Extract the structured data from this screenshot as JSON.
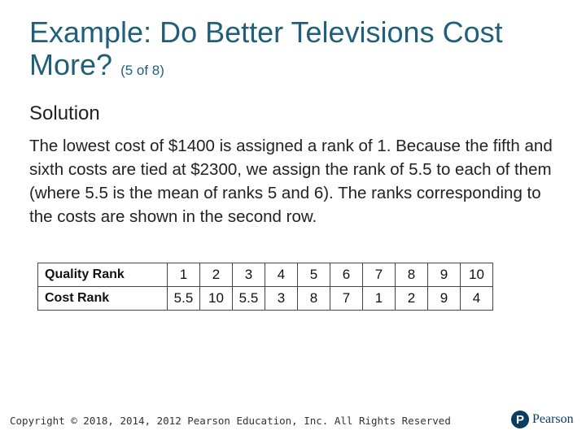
{
  "title": {
    "main": "Example: Do Better Televisions Cost More?",
    "sub": "(5 of 8)"
  },
  "subheading": "Solution",
  "paragraph": "The lowest cost of $1400 is assigned a rank of 1. Because the fifth and sixth costs are tied at $2300, we assign the rank of 5.5 to each of them (where 5.5 is the mean of ranks 5 and 6). The ranks corresponding to the costs are shown in the second row.",
  "table": {
    "rows": [
      {
        "label": "Quality Rank",
        "values": [
          "1",
          "2",
          "3",
          "4",
          "5",
          "6",
          "7",
          "8",
          "9",
          "10"
        ]
      },
      {
        "label": "Cost Rank",
        "values": [
          "5.5",
          "10",
          "5.5",
          "3",
          "8",
          "7",
          "1",
          "2",
          "9",
          "4"
        ]
      }
    ]
  },
  "footer": {
    "copyright": "Copyright © 2018, 2014, 2012 Pearson Education, Inc. All Rights Reserved"
  },
  "logo": {
    "mark": "P",
    "text": "Pearson",
    "color": "#0a3d62"
  },
  "colors": {
    "title": "#1f5f7a"
  }
}
